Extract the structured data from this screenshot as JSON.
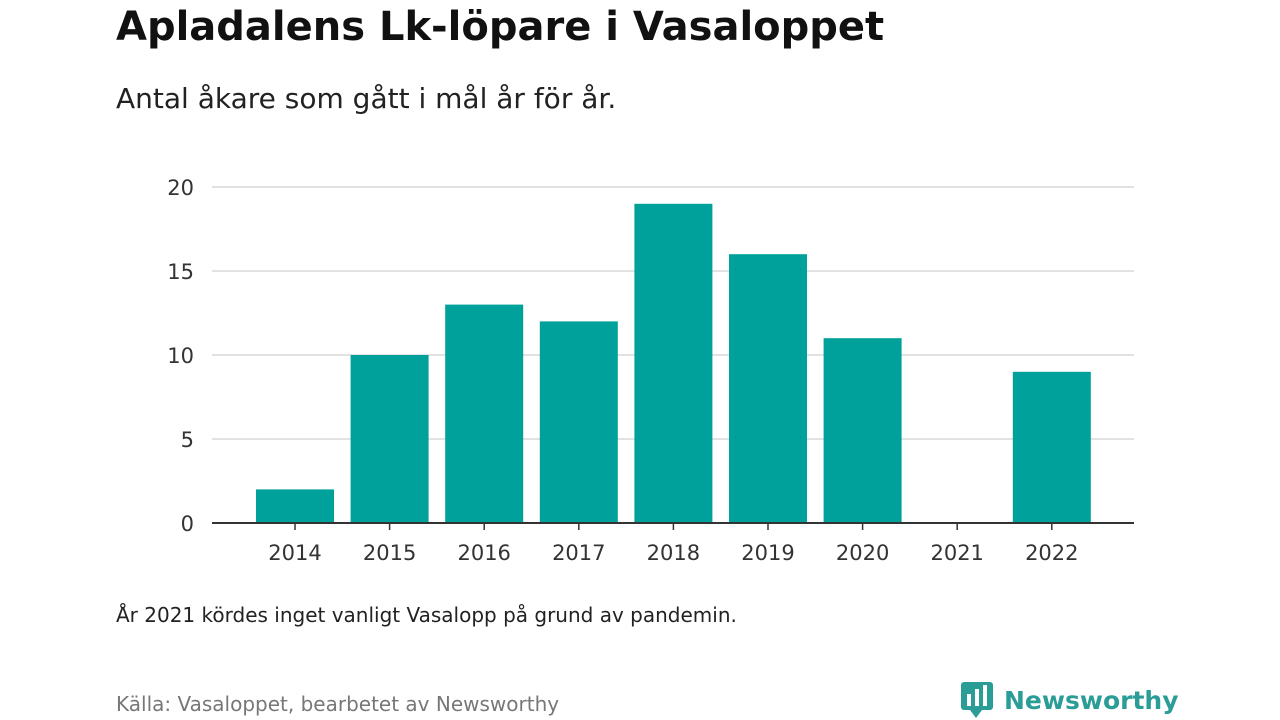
{
  "title": "Apladalens Lk-löpare i Vasaloppet",
  "subtitle": "Antal åkare som gått i mål år för år.",
  "note": "År 2021 kördes inget vanligt Vasalopp på grund av pandemin.",
  "source": "Källa: Vasaloppet, bearbetet av Newsworthy",
  "brand": {
    "name": "Newsworthy",
    "icon": "bar-chart-speech-bubble-icon",
    "color": "#2a9d97"
  },
  "chart_data": {
    "type": "bar",
    "categories": [
      "2014",
      "2015",
      "2016",
      "2017",
      "2018",
      "2019",
      "2020",
      "2021",
      "2022"
    ],
    "values": [
      2,
      10,
      13,
      12,
      19,
      16,
      11,
      0,
      9
    ],
    "ylim": [
      0,
      20
    ],
    "yticks": [
      0,
      5,
      10,
      15,
      20
    ],
    "xlabel": "",
    "ylabel": "",
    "grid": true,
    "legend": "none",
    "bar_color": "#00a19a"
  }
}
